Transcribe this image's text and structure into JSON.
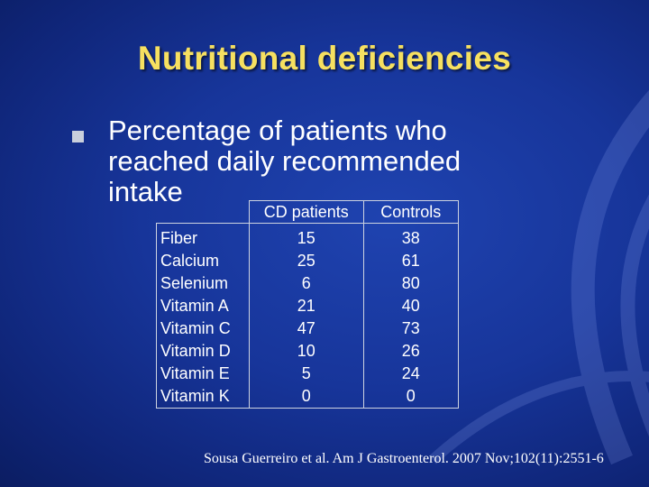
{
  "slide": {
    "title": "Nutritional deficiencies",
    "bullet": {
      "lines": [
        "Percentage of patients who",
        "reached daily recommended",
        "intake"
      ]
    },
    "table": {
      "headers": [
        "",
        "CD patients",
        "Controls"
      ],
      "rows": [
        {
          "nutrient": "Fiber",
          "cd": "15",
          "controls": "38"
        },
        {
          "nutrient": "Calcium",
          "cd": "25",
          "controls": "61"
        },
        {
          "nutrient": "Selenium",
          "cd": "6",
          "controls": "80"
        },
        {
          "nutrient": "Vitamin A",
          "cd": "21",
          "controls": "40"
        },
        {
          "nutrient": "Vitamin C",
          "cd": "47",
          "controls": "73"
        },
        {
          "nutrient": "Vitamin D",
          "cd": "10",
          "controls": "26"
        },
        {
          "nutrient": "Vitamin E",
          "cd": "5",
          "controls": "24"
        },
        {
          "nutrient": "Vitamin K",
          "cd": "0",
          "controls": "0"
        }
      ]
    },
    "citation": "Sousa Guerreiro et al. Am J Gastroenterol. 2007 Nov;102(11):2551-6"
  },
  "colors": {
    "background": "#17359a",
    "title": "#f6e060",
    "text": "#ffffff",
    "bullet": "#c9cfdc"
  }
}
